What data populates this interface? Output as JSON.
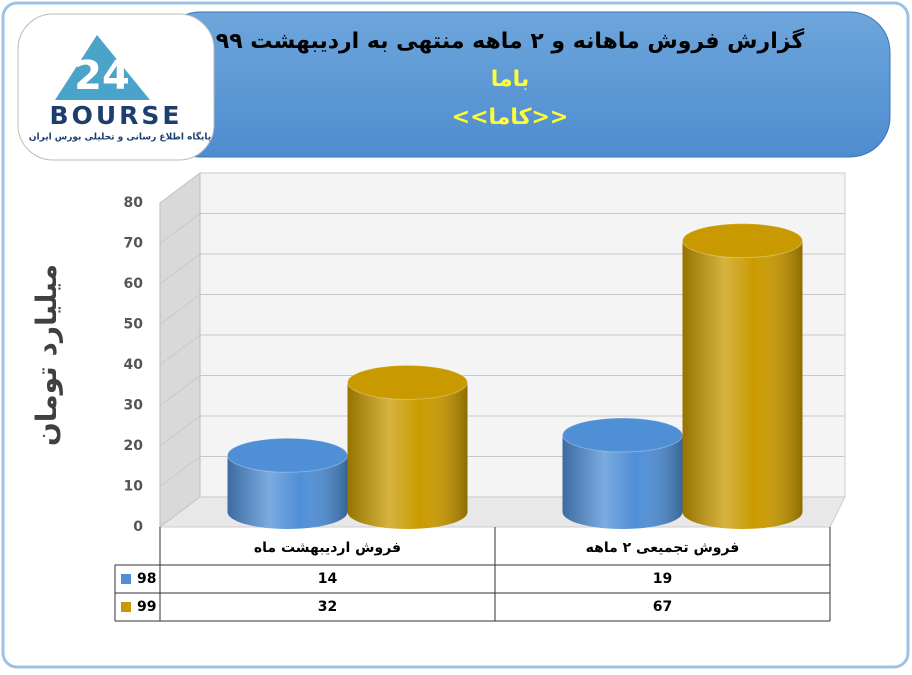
{
  "logo": {
    "number": "24",
    "name": "BOURSE",
    "tagline": "پایگاه اطلاع رسانی و تحلیلی بورس ایران"
  },
  "chart_data": {
    "type": "bar",
    "title": "گزارش فروش ماهانه و ۲ ماهه منتهی به اردیبهشت ۹۹",
    "subtitle": "باما",
    "subtitle2": "<<کاما>>",
    "y_label": "میلیارد تومان",
    "categories": [
      "فروش اردیبهشت  ماه",
      "فروش تجمیعی ۲ ماهه"
    ],
    "series": [
      {
        "name": "98",
        "color": "#4f8fd6",
        "values": [
          14,
          19
        ]
      },
      {
        "name": "99",
        "color": "#c99a00",
        "values": [
          32,
          67
        ]
      }
    ],
    "ylim": [
      0,
      80
    ],
    "yticks": [
      0,
      10,
      20,
      30,
      40,
      50,
      60,
      70,
      80
    ],
    "grid": true,
    "data_table": true
  }
}
